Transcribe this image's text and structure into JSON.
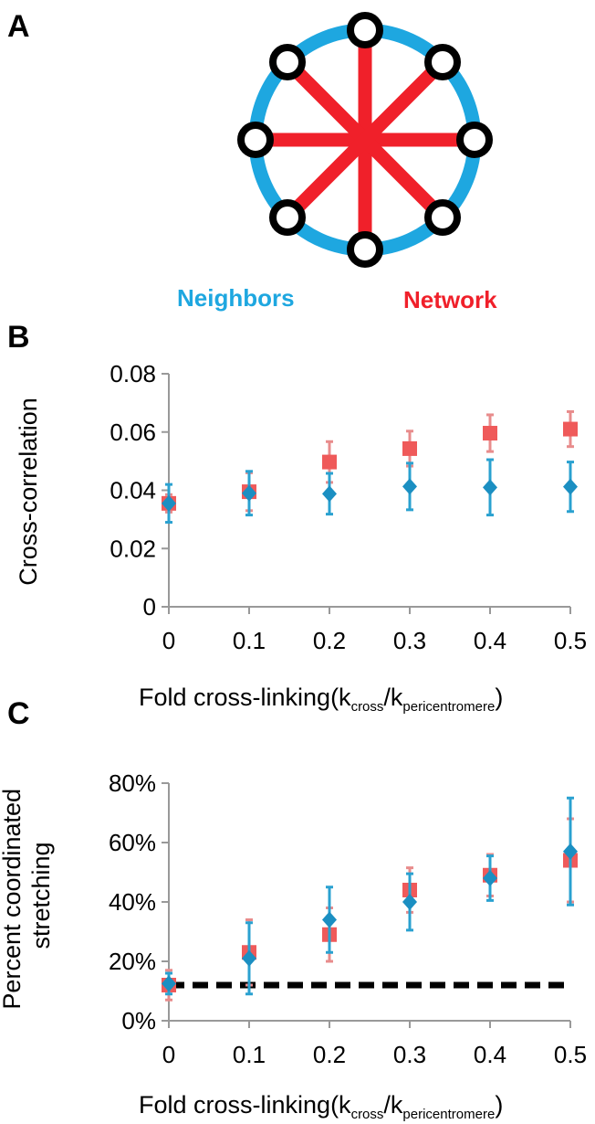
{
  "panels": {
    "a": "A",
    "b": "B",
    "c": "C"
  },
  "diagram": {
    "neighbors_label": "Neighbors",
    "network_label": "Network",
    "neighbors_color": "#1ea7e0",
    "network_color": "#f0202a"
  },
  "colors": {
    "network": "#ef5a5a",
    "neighbors": "#1b8fc2",
    "errorbar_network": "#e88c8c",
    "errorbar_neighbors": "#2aa1d0"
  },
  "chart_data": [
    {
      "type": "scatter",
      "ylabel": "Cross-correlation",
      "xlabel_main": "Fold cross-linking(k",
      "xlabel_sub1": "cross",
      "xlabel_mid": "/k",
      "xlabel_sub2": "pericentromere",
      "xlabel_end": ")",
      "x": [
        0,
        0.1,
        0.2,
        0.3,
        0.4,
        0.5
      ],
      "x_ticklabels": [
        "0",
        "0.1",
        "0.2",
        "0.3",
        "0.4",
        "0.5"
      ],
      "ylim": [
        0,
        0.08
      ],
      "y_ticks": [
        0,
        0.02,
        0.04,
        0.06,
        0.08
      ],
      "y_ticklabels": [
        "0",
        "0.02",
        "0.04",
        "0.06",
        "0.08"
      ],
      "series": [
        {
          "key": "network",
          "marker": "square",
          "values": [
            0.0355,
            0.0395,
            0.0497,
            0.0543,
            0.0596,
            0.061
          ],
          "err": [
            0.003,
            0.0065,
            0.007,
            0.006,
            0.0063,
            0.006
          ]
        },
        {
          "key": "neighbors",
          "marker": "diamond",
          "values": [
            0.0355,
            0.039,
            0.0388,
            0.0413,
            0.041,
            0.0412
          ],
          "err": [
            0.0065,
            0.0075,
            0.007,
            0.008,
            0.0095,
            0.0085
          ]
        }
      ]
    },
    {
      "type": "scatter",
      "ylabel_line1": "Percent coordinated",
      "ylabel_line2": "stretching",
      "xlabel_main": "Fold cross-linking(k",
      "xlabel_sub1": "cross",
      "xlabel_mid": "/k",
      "xlabel_sub2": "pericentromere",
      "xlabel_end": ")",
      "x": [
        0,
        0.1,
        0.2,
        0.3,
        0.4,
        0.5
      ],
      "x_ticklabels": [
        "0",
        "0.1",
        "0.2",
        "0.3",
        "0.4",
        "0.5"
      ],
      "ylim": [
        0,
        80
      ],
      "y_ticks": [
        0,
        20,
        40,
        60,
        80
      ],
      "y_ticklabels": [
        "0%",
        "20%",
        "40%",
        "60%",
        "80%"
      ],
      "baseline": 12,
      "series": [
        {
          "key": "network",
          "marker": "square",
          "values": [
            12,
            23,
            29,
            44,
            49,
            54
          ],
          "err": [
            5,
            11,
            9,
            7.5,
            7,
            14
          ]
        },
        {
          "key": "neighbors",
          "marker": "diamond",
          "values": [
            12.5,
            21,
            34,
            40,
            48,
            57
          ],
          "err": [
            3.5,
            12,
            11,
            9.5,
            7.5,
            18
          ]
        }
      ]
    }
  ]
}
